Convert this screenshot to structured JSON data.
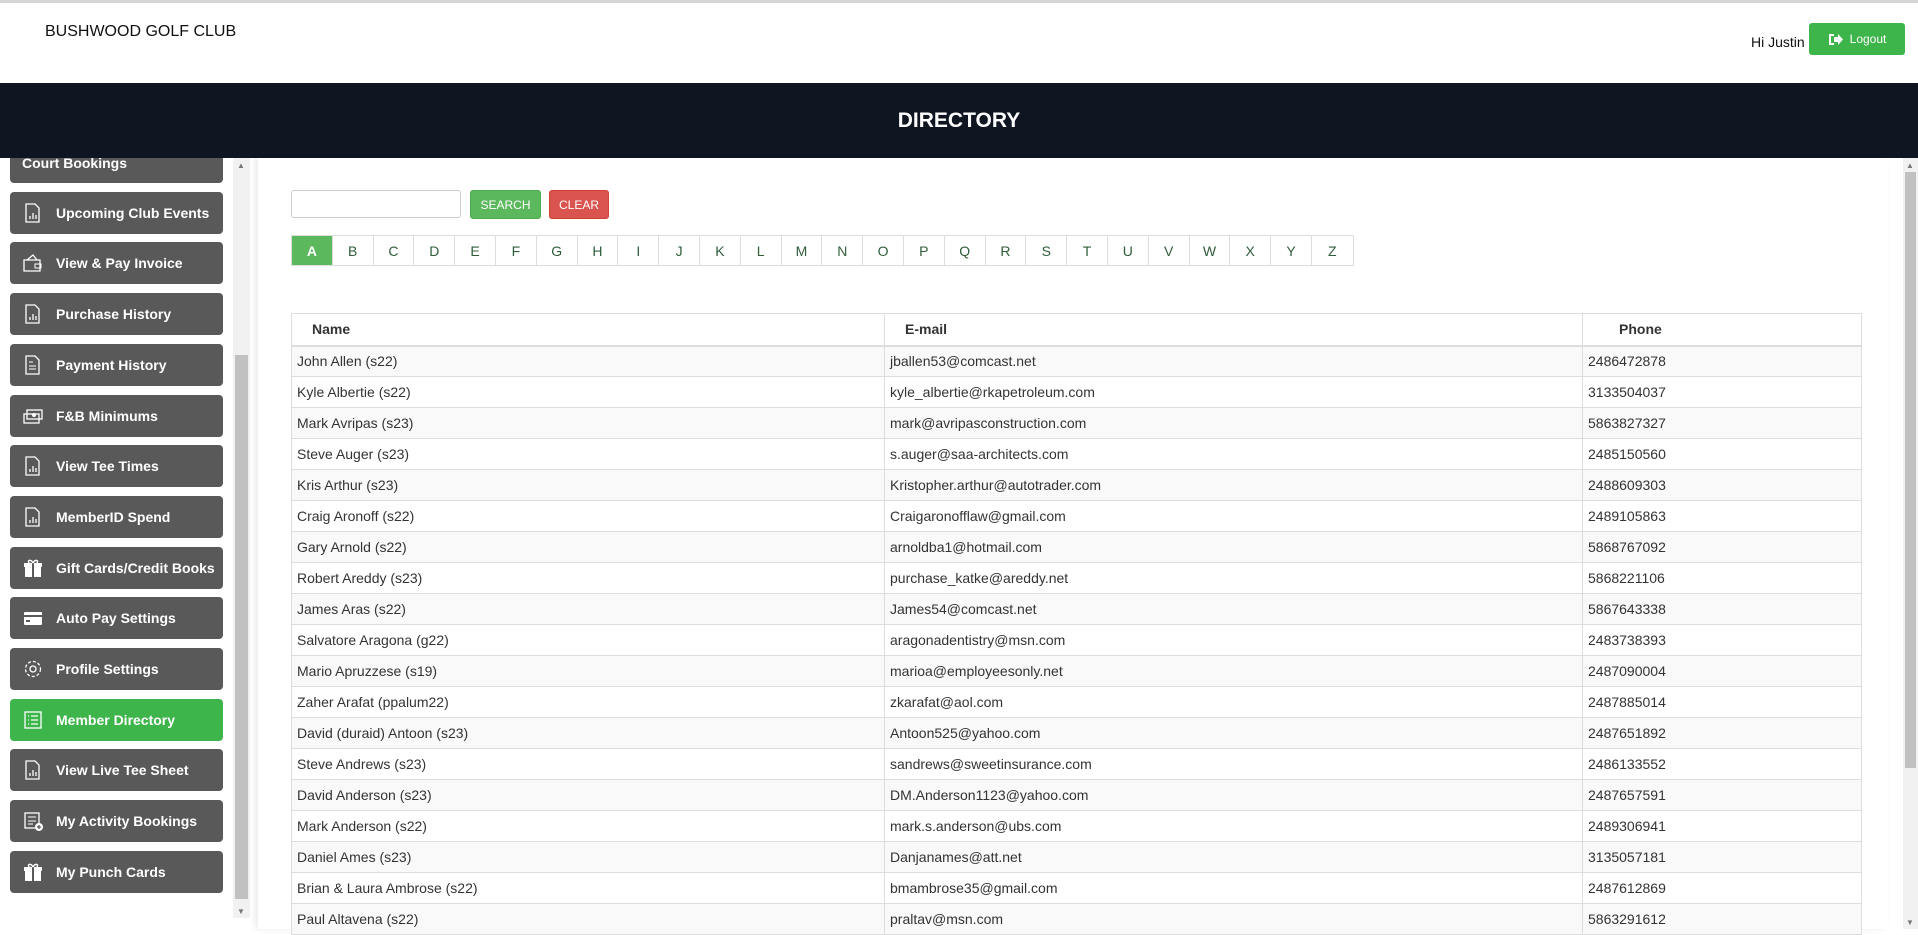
{
  "header": {
    "brand": "BUSHWOOD GOLF CLUB",
    "greeting": "Hi Justin",
    "logout_label": "Logout"
  },
  "banner": {
    "title": "DIRECTORY"
  },
  "sidebar": {
    "items": [
      {
        "label": "Court Bookings",
        "icon": "chart-doc-icon",
        "active": false
      },
      {
        "label": "Upcoming Club Events",
        "icon": "chart-doc-icon",
        "active": false
      },
      {
        "label": "View & Pay Invoice",
        "icon": "wallet-icon",
        "active": false
      },
      {
        "label": "Purchase History",
        "icon": "chart-doc-icon",
        "active": false
      },
      {
        "label": "Payment History",
        "icon": "receipt-icon",
        "active": false
      },
      {
        "label": "F&B Minimums",
        "icon": "cash-icon",
        "active": false
      },
      {
        "label": "View Tee Times",
        "icon": "chart-doc-icon",
        "active": false
      },
      {
        "label": "MemberID Spend",
        "icon": "chart-doc-icon",
        "active": false
      },
      {
        "label": "Gift Cards/Credit Books",
        "icon": "gift-icon",
        "active": false
      },
      {
        "label": "Auto Pay Settings",
        "icon": "credit-card-icon",
        "active": false
      },
      {
        "label": "Profile Settings",
        "icon": "gear-icon",
        "active": false
      },
      {
        "label": "Member Directory",
        "icon": "list-icon",
        "active": true
      },
      {
        "label": "View Live Tee Sheet",
        "icon": "chart-doc-icon",
        "active": false
      },
      {
        "label": "My Activity Bookings",
        "icon": "list-add-icon",
        "active": false
      },
      {
        "label": "My Punch Cards",
        "icon": "gift-icon",
        "active": false
      }
    ]
  },
  "search": {
    "value": "",
    "placeholder": "",
    "search_label": "SEARCH",
    "clear_label": "CLEAR"
  },
  "letters": {
    "items": [
      "A",
      "B",
      "C",
      "D",
      "E",
      "F",
      "G",
      "H",
      "I",
      "J",
      "K",
      "L",
      "M",
      "N",
      "O",
      "P",
      "Q",
      "R",
      "S",
      "T",
      "U",
      "V",
      "W",
      "X",
      "Y",
      "Z"
    ],
    "active": "A"
  },
  "table": {
    "headers": [
      "Name",
      "E-mail",
      "Phone"
    ],
    "rows": [
      [
        "John Allen (s22)",
        "jballen53@comcast.net",
        "2486472878"
      ],
      [
        "Kyle Albertie (s22)",
        "kyle_albertie@rkapetroleum.com",
        "3133504037"
      ],
      [
        "Mark Avripas (s23)",
        "mark@avripasconstruction.com",
        "5863827327"
      ],
      [
        "Steve Auger (s23)",
        "s.auger@saa-architects.com",
        "2485150560"
      ],
      [
        "Kris Arthur (s23)",
        "Kristopher.arthur@autotrader.com",
        "2488609303"
      ],
      [
        "Craig Aronoff (s22)",
        "Craigaronofflaw@gmail.com",
        "2489105863"
      ],
      [
        "Gary Arnold (s22)",
        "arnoldba1@hotmail.com",
        "5868767092"
      ],
      [
        "Robert Areddy (s23)",
        "purchase_katke@areddy.net",
        "5868221106"
      ],
      [
        "James Aras (s22)",
        "James54@comcast.net",
        "5867643338"
      ],
      [
        "Salvatore Aragona (g22)",
        "aragonadentistry@msn.com",
        "2483738393"
      ],
      [
        "Mario Apruzzese (s19)",
        "marioa@employeesonly.net",
        "2487090004"
      ],
      [
        "Zaher Arafat (ppalum22)",
        "zkarafat@aol.com",
        "2487885014"
      ],
      [
        "David (duraid) Antoon (s23)",
        "Antoon525@yahoo.com",
        "2487651892"
      ],
      [
        "Steve Andrews (s23)",
        "sandrews@sweetinsurance.com",
        "2486133552"
      ],
      [
        "David Anderson (s23)",
        "DM.Anderson1123@yahoo.com",
        "2487657591"
      ],
      [
        "Mark Anderson (s22)",
        "mark.s.anderson@ubs.com",
        "2489306941"
      ],
      [
        "Daniel Ames (s23)",
        "Danjanames@att.net",
        "3135057181"
      ],
      [
        "Brian & Laura Ambrose (s22)",
        "bmambrose35@gmail.com",
        "2487612869"
      ],
      [
        "Paul Altavena (s22)",
        "praltav@msn.com",
        "5863291612"
      ]
    ]
  },
  "colors": {
    "banner": "#0f1521",
    "sidebar_button": "#595959",
    "active": "#3db54a",
    "search": "#5cb85c",
    "clear": "#d9534f"
  }
}
